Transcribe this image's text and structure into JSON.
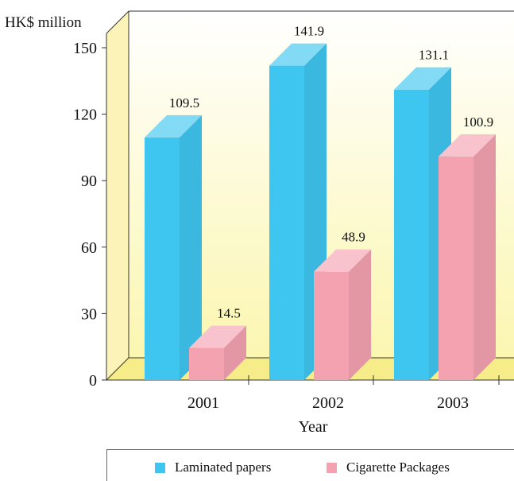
{
  "chart_data": {
    "type": "bar",
    "title": "",
    "ylabel": "HK$ million",
    "xlabel": "Year",
    "categories": [
      "2001",
      "2002",
      "2003"
    ],
    "ylim": [
      0,
      150
    ],
    "yticks": [
      0,
      30,
      60,
      90,
      120,
      150
    ],
    "series": [
      {
        "name": "Laminated papers",
        "values": [
          109.5,
          141.9,
          131.1
        ],
        "color": "#3ec6f0"
      },
      {
        "name": "Cigarette Packages",
        "values": [
          14.5,
          48.9,
          100.9
        ],
        "color": "#f4a2b0"
      }
    ],
    "value_labels": [
      [
        "109.5",
        "141.9",
        "131.1"
      ],
      [
        "14.5",
        "48.9",
        "100.9"
      ]
    ],
    "legend_position": "bottom",
    "grid": false
  }
}
